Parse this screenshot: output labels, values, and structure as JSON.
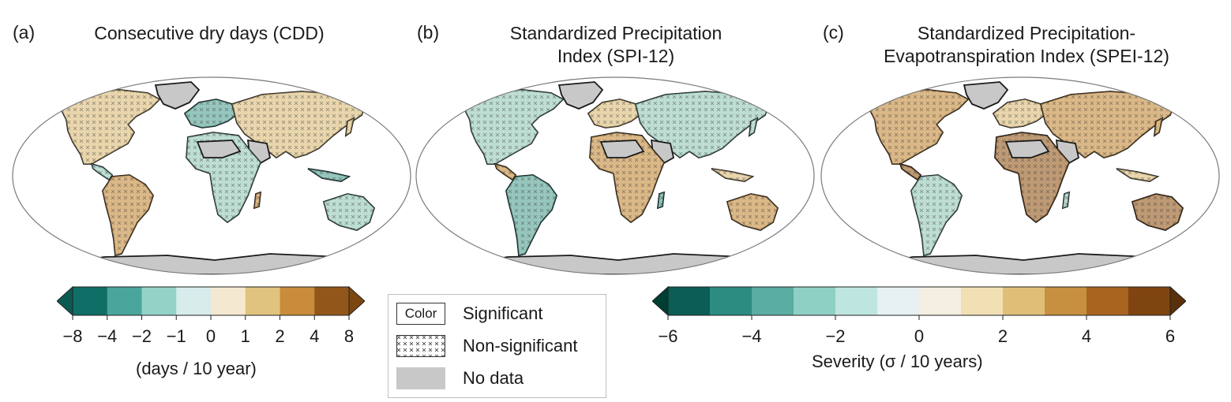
{
  "panels": [
    {
      "letter": "(a)",
      "title_lines": [
        "Consecutive dry days (CDD)"
      ]
    },
    {
      "letter": "(b)",
      "title_lines": [
        "Standardized Precipitation",
        "Index (SPI-12)"
      ]
    },
    {
      "letter": "(c)",
      "title_lines": [
        "Standardized Precipitation-",
        "Evapotranspiration Index (SPEI-12)"
      ]
    }
  ],
  "colorbar_cdd": {
    "colors": [
      "#0f6e66",
      "#4aa69d",
      "#94d2c7",
      "#d8ecec",
      "#f5e8d1",
      "#e1c380",
      "#c88c3a",
      "#93561a"
    ],
    "extend_low_color": "#0b5a52",
    "extend_high_color": "#7d4611",
    "ticks": [
      "−8",
      "−4",
      "−2",
      "−1",
      "0",
      "1",
      "2",
      "4",
      "8"
    ],
    "label": "(days / 10 year)"
  },
  "colorbar_severity": {
    "colors": [
      "#0b5d55",
      "#2c8c82",
      "#59ada3",
      "#8fd0c4",
      "#bfe5e0",
      "#e7f1f1",
      "#f4efe1",
      "#f2e0b5",
      "#dfbf78",
      "#c78f40",
      "#a9641f",
      "#7f4510"
    ],
    "extend_low_color": "#003d33",
    "extend_high_color": "#5a300a",
    "ticks": [
      "−6",
      "−4",
      "−2",
      "0",
      "2",
      "4",
      "6"
    ],
    "label": "Severity (σ / 10 years)"
  },
  "legend": {
    "color_swatch_text": "Color",
    "items": [
      "Significant",
      "Non-significant",
      "No data"
    ],
    "nodata_color": "#c8c8c8"
  },
  "map_colors": {
    "ocean": "#ffffff",
    "land_base": "#f1ede4",
    "nodata": "#c8c8c8",
    "coast": "#1a1a1a",
    "frame": "#7a7a7a"
  }
}
